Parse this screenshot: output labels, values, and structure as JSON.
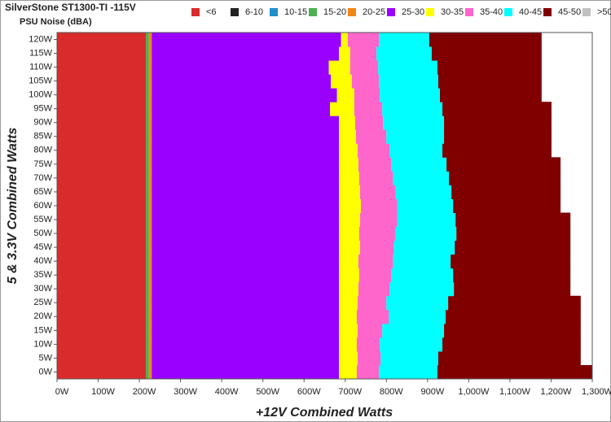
{
  "chart_data": {
    "type": "stacked_barh",
    "title": "SilverStone ST1300-TI -115V",
    "subtitle": "PSU Noise (dBA)",
    "x_label": "+12V Combined Watts",
    "y_label": "5 & 3.3V Combined Watts",
    "categories": [
      "0W",
      "5W",
      "10W",
      "15W",
      "20W",
      "25W",
      "30W",
      "35W",
      "40W",
      "45W",
      "50W",
      "55W",
      "60W",
      "65W",
      "70W",
      "75W",
      "80W",
      "85W",
      "90W",
      "95W",
      "100W",
      "105W",
      "110W",
      "115W",
      "120W"
    ],
    "xlim": [
      0,
      1300
    ],
    "xticks": [
      {
        "value": 0,
        "label": "0W"
      },
      {
        "value": 100,
        "label": "100W"
      },
      {
        "value": 200,
        "label": "200W"
      },
      {
        "value": 300,
        "label": "300W"
      },
      {
        "value": 400,
        "label": "400W"
      },
      {
        "value": 500,
        "label": "500W"
      },
      {
        "value": 600,
        "label": "600W"
      },
      {
        "value": 700,
        "label": "700W"
      },
      {
        "value": 800,
        "label": "800W"
      },
      {
        "value": 900,
        "label": "900W"
      },
      {
        "value": 1000,
        "label": "1,000W"
      },
      {
        "value": 1100,
        "label": "1,100W"
      },
      {
        "value": 1200,
        "label": "1,200W"
      },
      {
        "value": 1300,
        "label": "1,300W"
      }
    ],
    "series": [
      {
        "name": "<6",
        "color": "#d92b2b",
        "values": [
          216,
          216,
          216,
          216,
          216,
          216,
          216,
          216,
          216,
          216,
          216,
          216,
          216,
          216,
          216,
          216,
          216,
          216,
          216,
          216,
          216,
          216,
          216,
          216,
          216
        ]
      },
      {
        "name": "6-10",
        "color": "#222222",
        "values": [
          0,
          0,
          0,
          0,
          0,
          0,
          0,
          0,
          0,
          0,
          0,
          0,
          0,
          0,
          0,
          0,
          0,
          0,
          0,
          0,
          0,
          0,
          0,
          0,
          0
        ]
      },
      {
        "name": "10-15",
        "color": "#1f8fc8",
        "values": [
          0,
          0,
          0,
          0,
          0,
          0,
          0,
          0,
          0,
          0,
          0,
          0,
          0,
          0,
          0,
          0,
          0,
          0,
          0,
          0,
          0,
          0,
          0,
          0,
          0
        ]
      },
      {
        "name": "15-20",
        "color": "#4caf50",
        "values": [
          7,
          7,
          7,
          7,
          7,
          7,
          7,
          7,
          7,
          7,
          7,
          7,
          7,
          7,
          7,
          7,
          7,
          7,
          7,
          7,
          7,
          7,
          7,
          7,
          7
        ]
      },
      {
        "name": "20-25",
        "color": "#f0861a",
        "values": [
          7,
          7,
          7,
          7,
          7,
          7,
          7,
          7,
          7,
          7,
          7,
          7,
          7,
          7,
          7,
          7,
          7,
          7,
          7,
          7,
          7,
          7,
          7,
          7,
          7
        ]
      },
      {
        "name": "25-30",
        "color": "#9900ff",
        "values": [
          455,
          455,
          455,
          455,
          455,
          455,
          455,
          455,
          455,
          455,
          455,
          455,
          455,
          455,
          455,
          455,
          455,
          455,
          455,
          433,
          450,
          435,
          430,
          455,
          460
        ]
      },
      {
        "name": "30-35",
        "color": "#ffff00",
        "values": [
          43,
          45,
          43,
          45,
          43,
          45,
          47,
          49,
          47,
          51,
          49,
          51,
          53,
          51,
          49,
          47,
          45,
          41,
          39,
          59,
          42,
          51,
          52,
          27,
          16
        ]
      },
      {
        "name": "35-40",
        "color": "#ff66cc",
        "values": [
          54,
          56,
          56,
          60,
          78,
          70,
          76,
          78,
          84,
          82,
          88,
          90,
          88,
          86,
          82,
          80,
          78,
          74,
          68,
          68,
          62,
          66,
          68,
          64,
          76
        ]
      },
      {
        "name": "40-45",
        "color": "#00ffff",
        "values": [
          142,
          140,
          152,
          150,
          138,
          150,
          156,
          150,
          140,
          148,
          148,
          142,
          136,
          136,
          136,
          134,
          128,
          140,
          148,
          146,
          146,
          144,
          144,
          134,
          122
        ]
      },
      {
        "name": "45-50",
        "color": "#800000",
        "values": [
          376,
          346,
          336,
          332,
          328,
          322,
          283,
          285,
          291,
          281,
          277,
          279,
          261,
          265,
          271,
          277,
          265,
          261,
          261,
          265,
          247,
          251,
          253,
          267,
          273
        ]
      },
      {
        "name": ">50",
        "color": "#c0c0c0",
        "values": [
          0,
          0,
          0,
          0,
          0,
          0,
          0,
          0,
          0,
          0,
          0,
          0,
          0,
          0,
          0,
          0,
          0,
          0,
          0,
          0,
          0,
          0,
          0,
          0,
          0
        ]
      }
    ]
  }
}
